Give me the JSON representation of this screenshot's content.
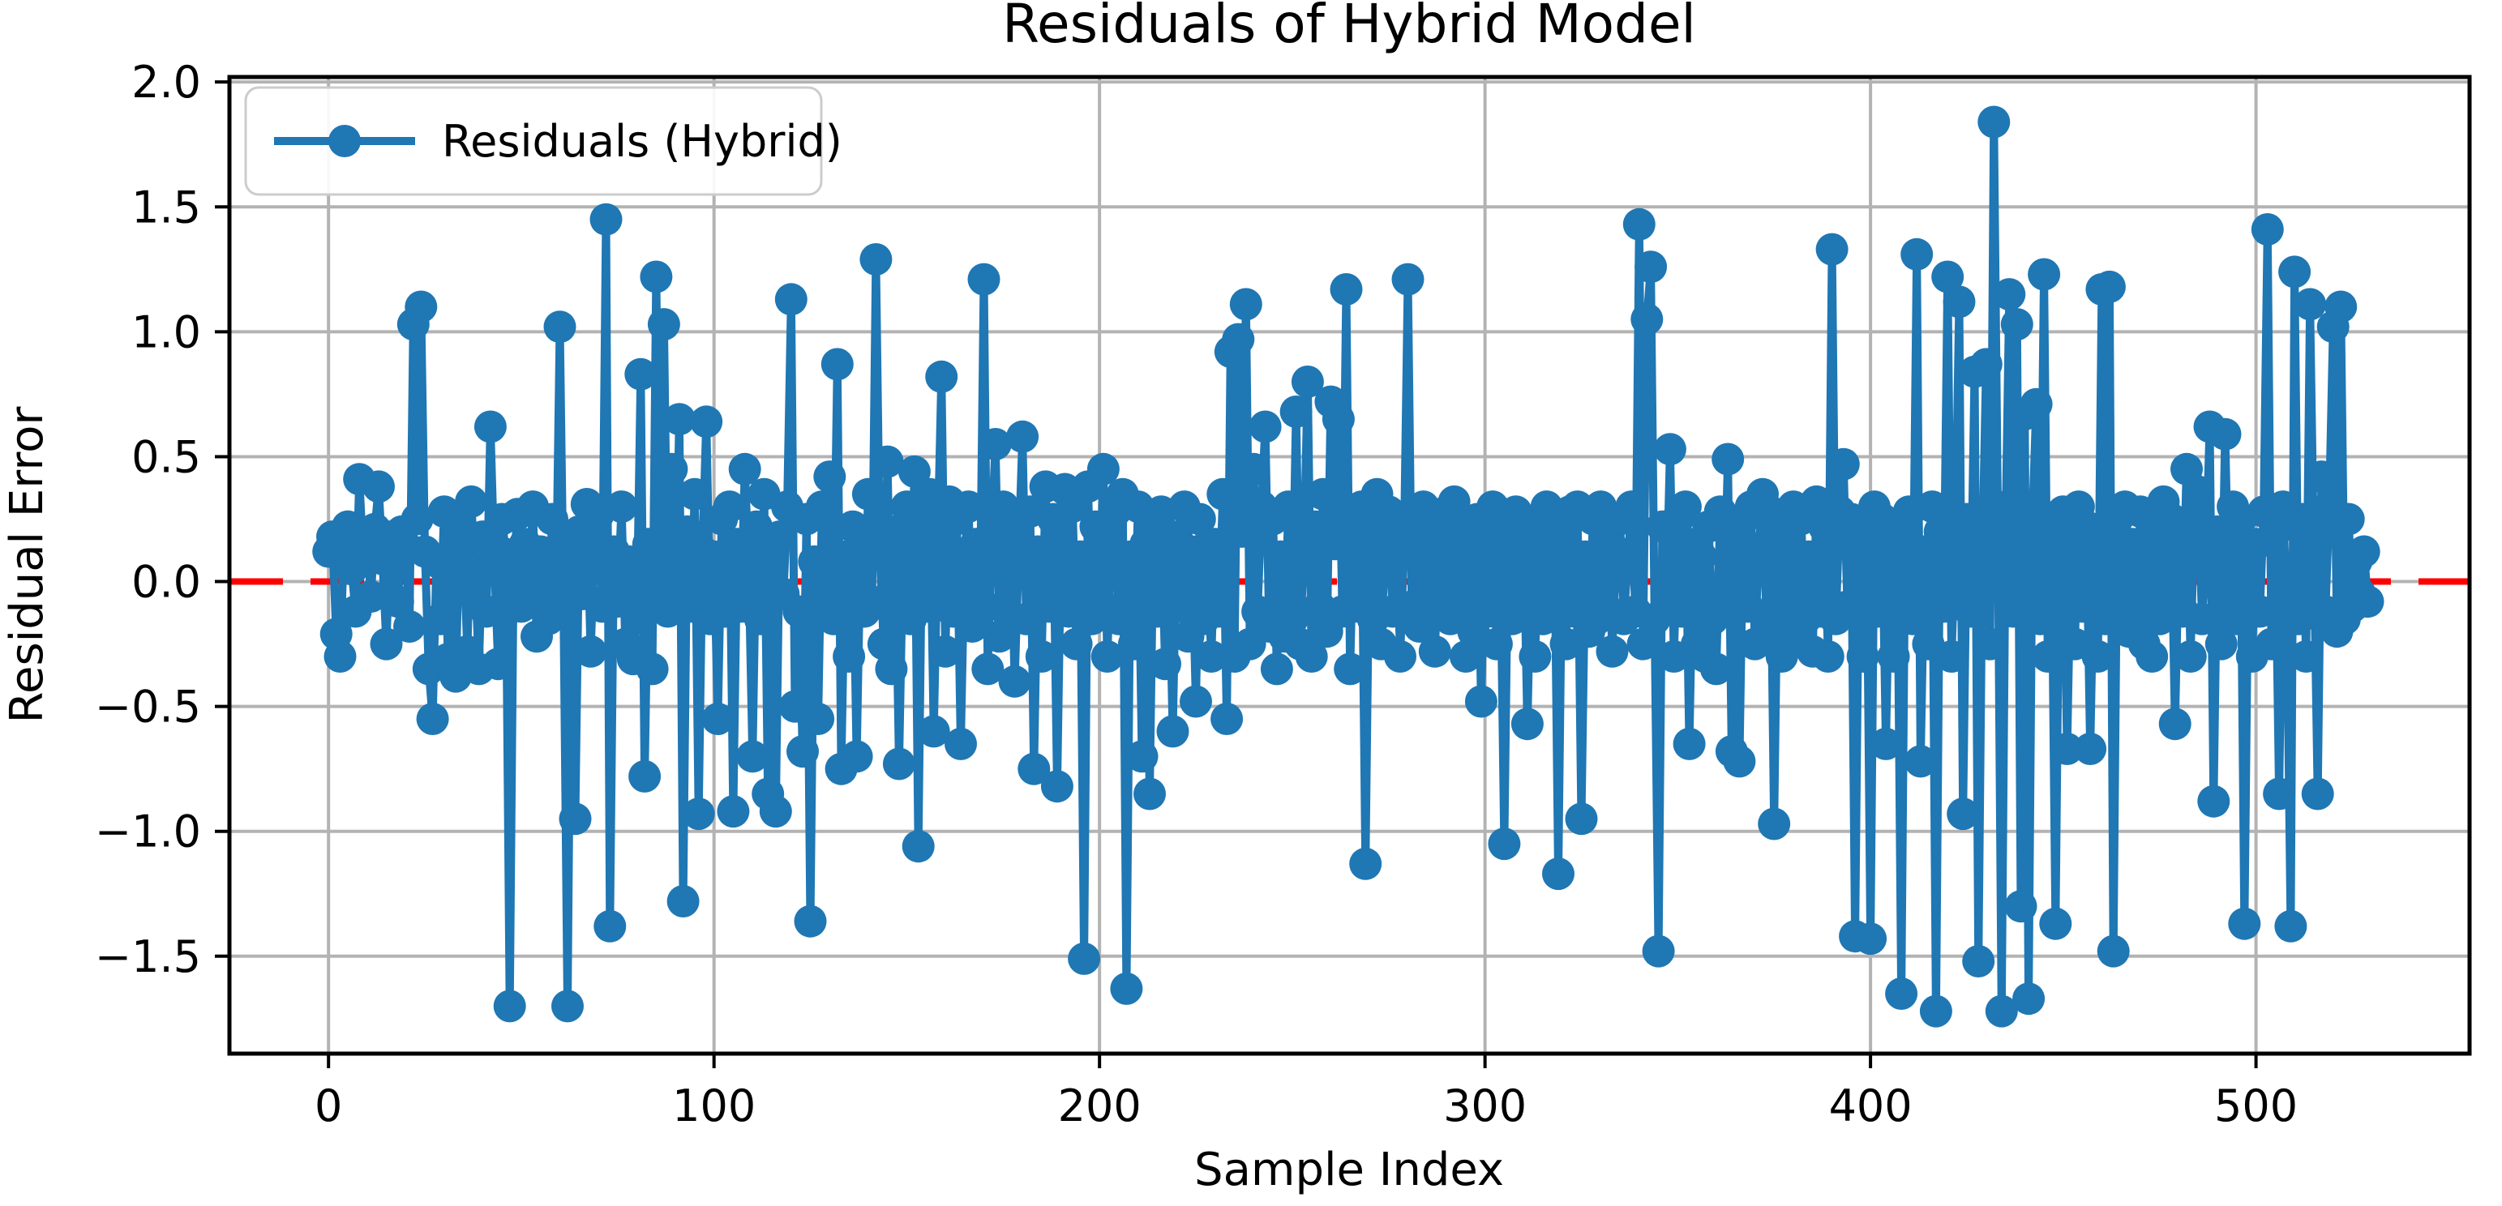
{
  "chart_data": {
    "type": "line",
    "title": "Residuals of Hybrid Model",
    "xlabel": "Sample Index",
    "ylabel": "Residual Error",
    "grid": true,
    "legend_position": "upper left",
    "background_color": "#ffffff",
    "spine_color": "#000000",
    "grid_color": "#b3b3b3",
    "text_color": "#000000",
    "legend": [
      {
        "label": "Residuals (Hybrid)",
        "color": "#1f77b4",
        "marker": "circle"
      }
    ],
    "x_ticks": {
      "values": [
        0,
        100,
        200,
        300,
        400,
        500
      ],
      "labels": [
        "0",
        "100",
        "200",
        "300",
        "400",
        "500"
      ]
    },
    "y_ticks": {
      "values": [
        2.0,
        1.5,
        1.0,
        0.5,
        0.0,
        -0.5,
        -1.0,
        -1.5
      ],
      "labels": [
        "2.0",
        "1.5",
        "1.0",
        "0.5",
        "0.0",
        "−0.5",
        "−1.0",
        "−1.5"
      ]
    },
    "xlim": [
      -25.7,
      555.4
    ],
    "ylim": [
      -1.89,
      2.02
    ],
    "zero_line": {
      "y": 0,
      "color": "#ff0000",
      "style": "dashed"
    },
    "series": [
      {
        "name": "Residuals (Hybrid)",
        "color": "#1f77b4",
        "x_start": 0,
        "x_step": 1,
        "values": [
          0.12,
          0.18,
          -0.21,
          -0.3,
          0.15,
          0.22,
          0.05,
          -0.12,
          0.41,
          0.1,
          0.16,
          -0.06,
          0.21,
          0.38,
          0.09,
          -0.25,
          0.18,
          0.11,
          -0.08,
          0.2,
          0.14,
          -0.18,
          1.03,
          0.25,
          1.1,
          0.12,
          -0.35,
          -0.55,
          0.08,
          -0.15,
          0.28,
          -0.31,
          0.1,
          -0.38,
          0.22,
          0.16,
          -0.28,
          0.32,
          0.05,
          -0.35,
          0.18,
          -0.12,
          0.62,
          0.08,
          -0.33,
          0.25,
          0.11,
          -1.7,
          0.05,
          0.27,
          -0.1,
          0.15,
          -0.05,
          0.3,
          -0.22,
          0.12,
          0.08,
          -0.15,
          0.25,
          -0.08,
          1.02,
          -0.12,
          -1.7,
          0.1,
          -0.95,
          0.2,
          -0.05,
          0.31,
          -0.28,
          0.15,
          0.27,
          -0.1,
          1.45,
          -1.38,
          0.12,
          -0.08,
          0.3,
          -0.25,
          0.08,
          -0.31,
          -0.12,
          0.83,
          -0.78,
          0.15,
          -0.35,
          1.22,
          -0.1,
          1.03,
          -0.12,
          0.45,
          -0.08,
          0.65,
          -1.28,
          0.2,
          -0.1,
          0.35,
          -0.93,
          0.12,
          0.64,
          -0.15,
          0.1,
          -0.55,
          0.25,
          -0.12,
          0.3,
          -0.92,
          0.15,
          -0.1,
          0.45,
          0.05,
          -0.7,
          0.22,
          -0.15,
          0.35,
          -0.85,
          0.1,
          -0.92,
          0.18,
          -0.05,
          0.3,
          1.13,
          -0.5,
          -0.12,
          -0.68,
          0.25,
          -1.36,
          0.08,
          -0.55,
          0.3,
          -0.1,
          0.42,
          -0.15,
          0.87,
          -0.75,
          0.1,
          -0.3,
          0.22,
          -0.7,
          0.15,
          -0.12,
          0.35,
          -0.08,
          1.29,
          0.12,
          -0.25,
          0.48,
          -0.35,
          0.2,
          -0.73,
          0.1,
          0.3,
          -0.15,
          0.44,
          -1.06,
          0.25,
          -0.1,
          0.35,
          -0.6,
          0.15,
          0.82,
          -0.28,
          0.32,
          -0.12,
          0.25,
          -0.65,
          0.1,
          0.3,
          -0.18,
          0.15,
          -0.08,
          1.21,
          -0.35,
          0.18,
          0.55,
          -0.22,
          0.3,
          -0.12,
          0.25,
          -0.4,
          0.1,
          0.58,
          -0.15,
          0.28,
          -0.75,
          0.12,
          -0.3,
          0.38,
          -0.1,
          0.25,
          -0.82,
          0.15,
          0.37,
          -0.12,
          0.3,
          -0.25,
          0.1,
          -1.51,
          0.38,
          -0.15,
          0.22,
          -0.08,
          0.45,
          -0.3,
          0.12,
          0.28,
          -0.15,
          0.35,
          -1.63,
          0.1,
          -0.25,
          0.3,
          -0.7,
          0.15,
          -0.85,
          0.22,
          -0.12,
          0.28,
          -0.33,
          0.1,
          -0.6,
          0.18,
          -0.1,
          0.3,
          -0.22,
          0.12,
          -0.48,
          0.25,
          -0.15,
          0.08,
          -0.3,
          0.15,
          -0.12,
          0.35,
          -0.55,
          0.92,
          -0.3,
          0.97,
          0.2,
          1.11,
          -0.25,
          0.45,
          -0.12,
          0.3,
          0.62,
          -0.18,
          0.25,
          -0.35,
          0.1,
          -0.22,
          0.3,
          -0.15,
          0.68,
          -0.25,
          0.12,
          0.8,
          -0.3,
          0.22,
          -0.1,
          0.35,
          -0.2,
          0.72,
          0.15,
          0.65,
          -0.12,
          1.17,
          -0.35,
          0.25,
          -0.1,
          0.3,
          -1.13,
          0.2,
          -0.15,
          0.35,
          -0.25,
          0.1,
          0.28,
          -0.12,
          0.22,
          -0.3,
          0.15,
          1.21,
          -0.1,
          0.25,
          -0.18,
          0.3,
          -0.12,
          0.2,
          -0.28,
          0.15,
          -0.08,
          0.28,
          -0.15,
          0.32,
          -0.1,
          0.22,
          -0.3,
          0.12,
          -0.2,
          0.25,
          -0.48,
          0.15,
          -0.12,
          0.3,
          -0.25,
          0.1,
          -1.05,
          0.22,
          -0.15,
          0.28,
          -0.1,
          0.2,
          -0.57,
          0.12,
          -0.3,
          0.25,
          -0.15,
          0.3,
          -0.1,
          0.22,
          -1.17,
          0.15,
          -0.25,
          0.28,
          -0.12,
          0.3,
          -0.95,
          0.1,
          -0.2,
          0.25,
          -0.15,
          0.3,
          -0.1,
          0.22,
          -0.28,
          0.12,
          0.25,
          -0.15,
          0.08,
          0.3,
          -0.12,
          1.43,
          -0.25,
          1.05,
          1.26,
          -0.15,
          -1.48,
          0.22,
          -0.1,
          0.53,
          -0.3,
          0.25,
          -0.12,
          0.3,
          -0.65,
          0.15,
          -0.25,
          0.1,
          -0.3,
          0.22,
          -0.15,
          -0.35,
          0.28,
          -0.12,
          0.49,
          -0.68,
          0.15,
          -0.72,
          0.25,
          -0.1,
          0.3,
          -0.25,
          0.12,
          0.35,
          -0.15,
          0.28,
          -0.97,
          0.2,
          -0.3,
          0.15,
          -0.12,
          0.3,
          -0.22,
          0.25,
          -0.15,
          0.1,
          -0.28,
          0.32,
          -0.12,
          0.22,
          -0.3,
          1.33,
          -0.15,
          0.28,
          0.47,
          -0.1,
          0.25,
          -1.42,
          0.12,
          -0.3,
          0.2,
          -1.43,
          0.3,
          -0.12,
          0.25,
          -0.65,
          0.15,
          -0.3,
          0.1,
          -1.65,
          0.22,
          0.28,
          -0.15,
          1.31,
          -0.72,
          0.12,
          -0.25,
          0.3,
          -1.72,
          0.2,
          -0.1,
          1.22,
          -0.3,
          0.15,
          1.12,
          -0.93,
          0.25,
          -0.12,
          0.84,
          -1.52,
          0.1,
          0.87,
          -0.25,
          1.84,
          0.3,
          -1.72,
          0.15,
          1.15,
          -0.12,
          1.03,
          -1.3,
          0.67,
          -1.67,
          0.25,
          0.71,
          -0.15,
          1.23,
          -0.3,
          0.12,
          -1.37,
          0.2,
          0.28,
          -0.67,
          0.15,
          -0.25,
          0.3,
          -0.1,
          0.22,
          -0.67,
          0.12,
          -0.3,
          1.17,
          -0.15,
          1.18,
          -1.48,
          0.25,
          -0.12,
          0.3,
          -0.2,
          0.15,
          -0.1,
          0.28,
          -0.25,
          0.12,
          -0.3,
          0.2,
          -0.15,
          0.32,
          -0.1,
          0.25,
          -0.57,
          0.15,
          -0.12,
          0.45,
          -0.3,
          0.25,
          0.36,
          -0.15,
          0.1,
          0.62,
          -0.88,
          0.2,
          -0.25,
          0.59,
          -0.12,
          0.3,
          -0.15,
          0.25,
          -1.37,
          0.1,
          -0.3,
          0.15,
          -0.12,
          0.28,
          1.41,
          -0.25,
          0.2,
          -0.85,
          0.3,
          -0.1,
          -1.38,
          1.24,
          -0.15,
          0.25,
          -0.3,
          1.11,
          0.12,
          -0.85,
          0.42,
          -0.12,
          0.3,
          1.02,
          -0.2,
          1.1,
          -0.15,
          0.25,
          -0.1,
          0.08,
          -0.05,
          0.12,
          -0.08
        ]
      }
    ]
  }
}
